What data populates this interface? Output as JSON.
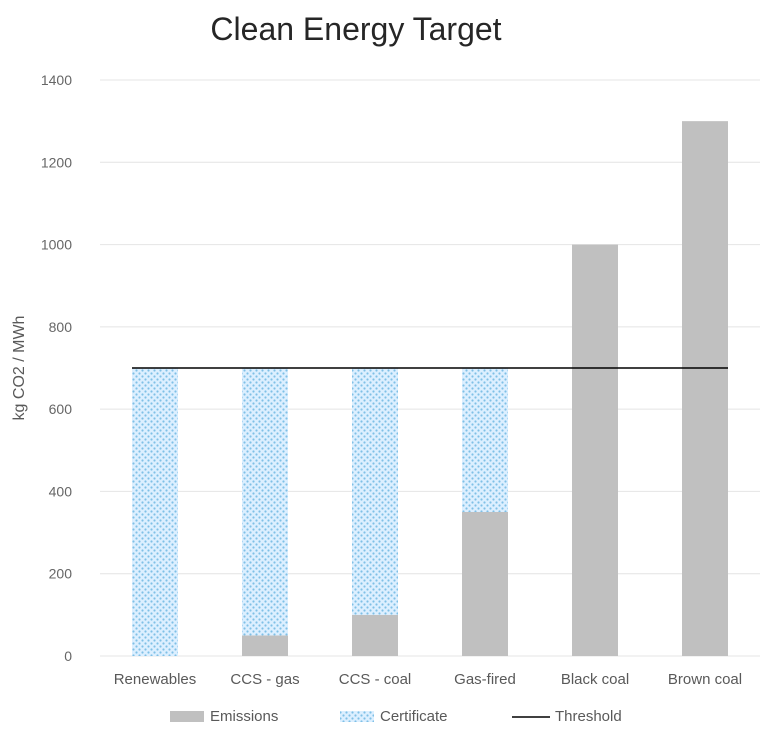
{
  "chart_data": {
    "type": "bar",
    "title": "Clean Energy Target",
    "xlabel": "",
    "ylabel": "kg CO2 / MWh",
    "ylim": [
      0,
      1400
    ],
    "yticks": [
      0,
      200,
      400,
      600,
      800,
      1000,
      1200,
      1400
    ],
    "grid": true,
    "stacked": true,
    "categories": [
      "Renewables",
      "CCS - gas",
      "CCS - coal",
      "Gas-fired",
      "Black coal",
      "Brown coal"
    ],
    "series": [
      {
        "name": "Emissions",
        "values": [
          0,
          50,
          100,
          350,
          1000,
          1300
        ],
        "color": "#c0c0c0"
      },
      {
        "name": "Certificate",
        "values": [
          700,
          650,
          600,
          350,
          0,
          0
        ],
        "color": "#9fd0ec"
      }
    ],
    "threshold": {
      "name": "Threshold",
      "value": 700,
      "color": "#000000"
    },
    "legend_position": "bottom"
  }
}
